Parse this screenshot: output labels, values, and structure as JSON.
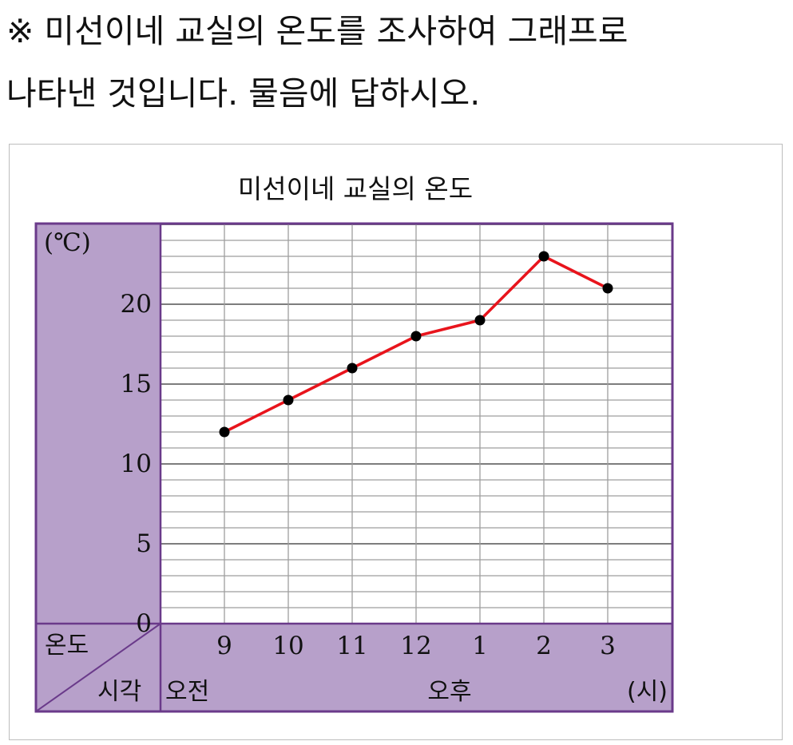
{
  "question": {
    "line1": "※ 미선이네 교실의 온도를 조사하여 그래프로",
    "line2": "나타낸 것입니다. 물음에 답하시오."
  },
  "colors": {
    "panel": "#b7a0ca",
    "border": "#6a3a8a",
    "line": "#e8141c",
    "point": "#000000",
    "grid": "#9e9e9e"
  },
  "chart_data": {
    "type": "line",
    "title": "미선이네 교실의 온도",
    "y_unit": "(℃)",
    "x_unit": "(시)",
    "ylim": [
      0,
      25
    ],
    "y_ticks": [
      0,
      5,
      10,
      15,
      20
    ],
    "grid": true,
    "categories": [
      "9",
      "10",
      "11",
      "12",
      "1",
      "2",
      "3"
    ],
    "values": [
      12,
      14,
      16,
      18,
      19,
      23,
      21
    ],
    "table_corner": {
      "top": "온도",
      "bottom": "시각"
    },
    "period_labels": {
      "am": "오전",
      "pm": "오후"
    }
  }
}
